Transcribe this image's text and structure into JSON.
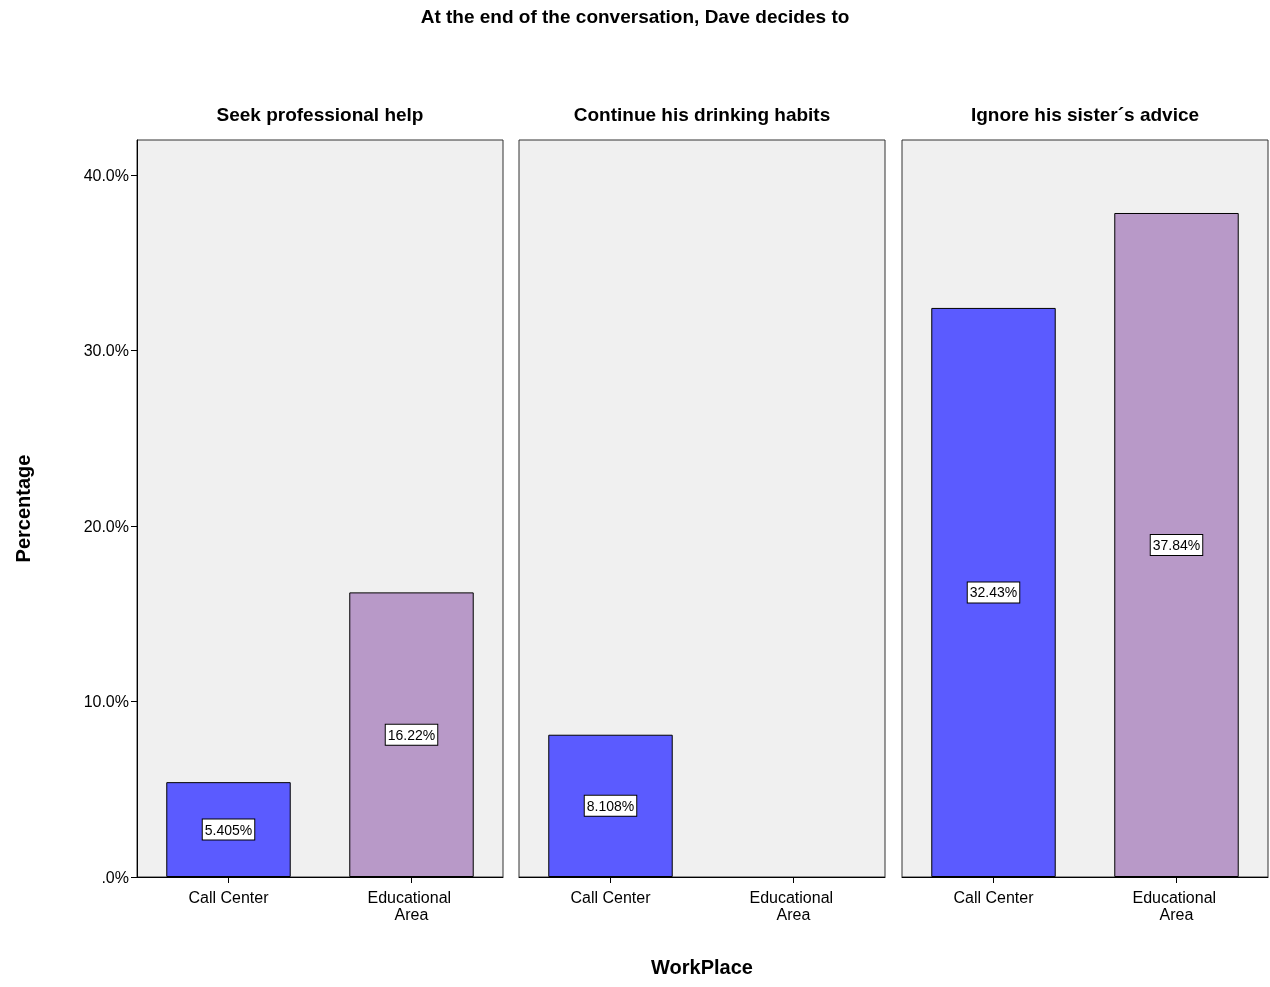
{
  "chart_data": [
    {
      "type": "bar",
      "title": "Seek professional help",
      "ylabel": "Percentage",
      "annotations": [
        "At the end of the conversation, Dave decides to"
      ],
      "categories": [
        "Call Center",
        "Educational Area"
      ],
      "values": [
        5.405,
        16.22
      ],
      "value_labels": [
        "5.405%",
        "16.22%"
      ],
      "colors": [
        "#5b5bff",
        "#b899c8"
      ],
      "ylim": [
        0,
        42
      ],
      "yticks": [
        {
          "value": 0,
          "label": ".0%"
        },
        {
          "value": 10,
          "label": "10.0%"
        },
        {
          "value": 20,
          "label": "20.0%"
        },
        {
          "value": 30,
          "label": "30.0%"
        },
        {
          "value": 40,
          "label": "40.0%"
        }
      ],
      "grid": false
    },
    {
      "type": "bar",
      "title": "Continue his drinking habits",
      "xlabel": "WorkPlace",
      "categories": [
        "Call Center",
        "Educational Area"
      ],
      "values": [
        8.108,
        null
      ],
      "value_labels": [
        "8.108%",
        null
      ],
      "colors": [
        "#5b5bff",
        "#b899c8"
      ],
      "ylim": [
        0,
        42
      ],
      "tick_labels": "x",
      "grid": false
    },
    {
      "type": "bar",
      "title": "Ignore his sister´s advice",
      "categories": [
        "Call Center",
        "Educational Area"
      ],
      "values": [
        32.43,
        37.84
      ],
      "value_labels": [
        "32.43%",
        "37.84%"
      ],
      "colors": [
        "#5b5bff",
        "#b899c8"
      ],
      "ylim": [
        0,
        42
      ],
      "tick_labels": "x",
      "grid": false
    }
  ]
}
